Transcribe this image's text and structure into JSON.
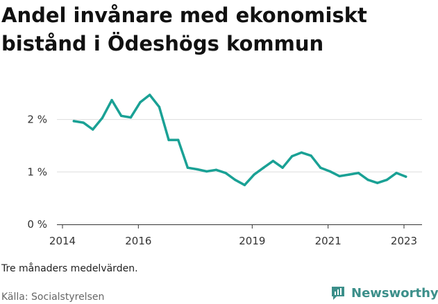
{
  "title": "Andel invånare med ekonomiskt bistånd i Ödeshögs kommun",
  "note": "Tre månaders medelvärden.",
  "source": "Källa: Socialstyrelsen",
  "brand": "Newsworthy",
  "colors": {
    "line": "#1aa195",
    "grid": "#dddddd",
    "brand": "#3c8f8a"
  },
  "chart_data": {
    "type": "line",
    "title": "Andel invånare med ekonomiskt bistånd i Ödeshögs kommun",
    "xlabel": "",
    "ylabel": "",
    "xlim": [
      2014,
      2023.5
    ],
    "ylim": [
      0,
      2.5
    ],
    "grid": true,
    "yticks": [
      {
        "value": 0,
        "label": "0 %"
      },
      {
        "value": 1,
        "label": "1 %"
      },
      {
        "value": 2,
        "label": "2 %"
      }
    ],
    "xticks": [
      {
        "value": 2014,
        "label": "2014"
      },
      {
        "value": 2016,
        "label": "2016"
      },
      {
        "value": 2019,
        "label": "2019"
      },
      {
        "value": 2021,
        "label": "2021"
      },
      {
        "value": 2023,
        "label": "2023"
      }
    ],
    "series": [
      {
        "x": [
          2014.3,
          2014.55,
          2014.8,
          2015.05,
          2015.3,
          2015.55,
          2015.8,
          2016.05,
          2016.3,
          2016.55,
          2016.8,
          2017.05,
          2017.3,
          2017.55,
          2017.8,
          2018.05,
          2018.3,
          2018.55,
          2018.8,
          2019.05,
          2019.3,
          2019.55,
          2019.8,
          2020.05,
          2020.3,
          2020.55,
          2020.8,
          2021.05,
          2021.3,
          2021.55,
          2021.8,
          2022.05,
          2022.3,
          2022.55,
          2022.8,
          2023.05
        ],
        "y": [
          1.97,
          1.94,
          1.81,
          2.03,
          2.37,
          2.07,
          2.04,
          2.33,
          2.47,
          2.24,
          1.61,
          1.61,
          1.08,
          1.05,
          1.01,
          1.04,
          0.98,
          0.85,
          0.75,
          0.95,
          1.08,
          1.21,
          1.08,
          1.3,
          1.37,
          1.31,
          1.08,
          1.01,
          0.92,
          0.95,
          0.98,
          0.85,
          0.79,
          0.85,
          0.98,
          0.91
        ]
      }
    ]
  }
}
